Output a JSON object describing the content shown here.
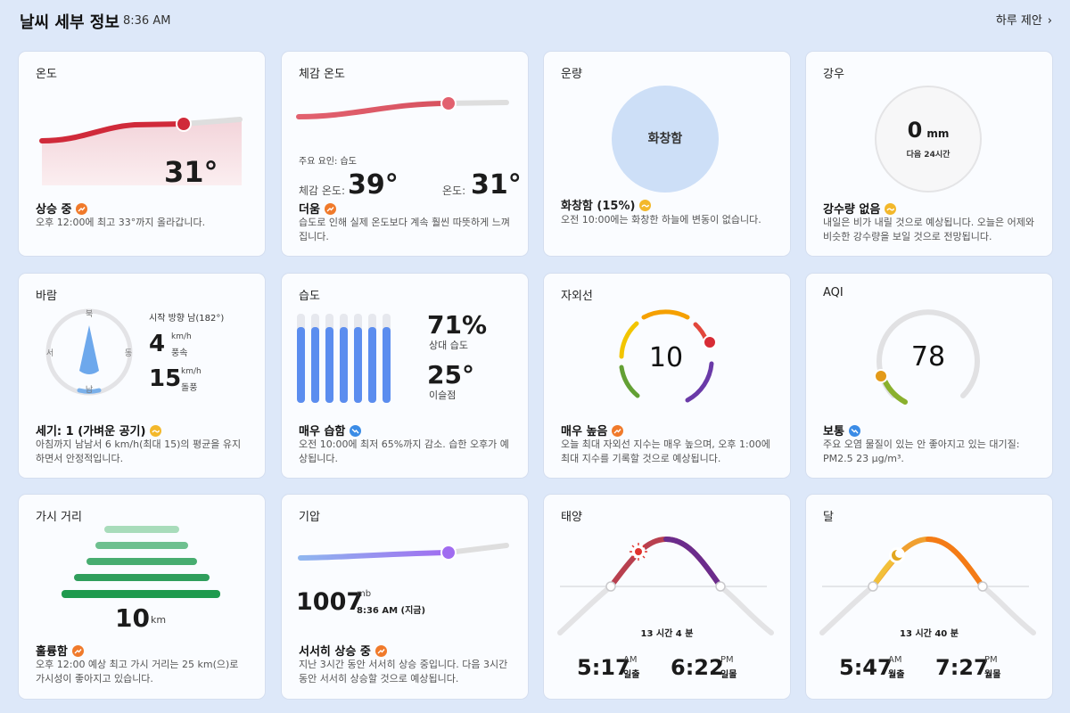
{
  "header": {
    "title": "날씨 세부 정보",
    "time": "8:36 AM",
    "suggest_label": "하루 제안"
  },
  "temperature": {
    "title": "온도",
    "value": "31°",
    "status": "상승 중",
    "status_trend": "up",
    "desc": "오후 12:00에 최고 33°까지 올라갑니다."
  },
  "feels_like": {
    "title": "체감 온도",
    "factor": "주요 요인: 습도",
    "feels_label": "체감 온도:",
    "feels_value": "39°",
    "temp_label": "온도:",
    "temp_value": "31°",
    "status": "더움",
    "status_trend": "up",
    "desc": "습도로 인해 실제 온도보다 계속 훨씬 따뜻하게 느껴집니다."
  },
  "cloud": {
    "title": "운량",
    "circle_label": "화창함",
    "status": "화창함 (15%)",
    "status_trend": "flat",
    "desc": "오전 10:00에는 화창한 하늘에 변동이 없습니다."
  },
  "precip": {
    "title": "강우",
    "value": "0",
    "unit": "mm",
    "sub": "다음 24시간",
    "status": "강수량 없음",
    "status_trend": "flat",
    "desc": "내일은 비가 내릴 것으로 예상됩니다. 오늘은 어제와 비슷한 강수량을 보일 것으로 전망됩니다."
  },
  "wind": {
    "title": "바람",
    "compass": {
      "n": "북",
      "s": "남",
      "e": "동",
      "w": "서"
    },
    "direction": "시작 방향 남(182°)",
    "speed_value": "4",
    "speed_unit": "km/h",
    "speed_label": "풍속",
    "gust_value": "15",
    "gust_unit": "km/h",
    "gust_label": "돌풍",
    "status": "세기: 1 (가벼운 공기)",
    "status_trend": "flat",
    "desc": "아침까지 남남서 6 km/h(최대 15)의 평균을 유지하면서 안정적입니다."
  },
  "humidity": {
    "title": "습도",
    "value": "71%",
    "value_label": "상대 습도",
    "dew_value": "25°",
    "dew_label": "이슬점",
    "bar_levels": [
      0.85,
      0.85,
      0.85,
      0.85,
      0.85,
      0.85,
      0.85
    ],
    "status": "매우 습함",
    "status_trend": "down",
    "desc": "오전 10:00에 최저 65%까지 감소. 습한 오후가 예상됩니다."
  },
  "uv": {
    "title": "자외선",
    "value": "10",
    "status": "매우 높음",
    "status_trend": "up",
    "desc": "오늘 최대 자외선 지수는 매우 높으며, 오후 1:00에 최대 지수를 기록할 것으로 예상됩니다."
  },
  "aqi": {
    "title": "AQI",
    "value": "78",
    "status": "보통",
    "status_trend": "down",
    "desc": "주요 오염 물질이 있는 안 좋아지고 있는 대기질: PM2.5 23 µg/m³."
  },
  "visibility": {
    "title": "가시 거리",
    "value": "10",
    "unit": "km",
    "status": "훌륭함",
    "status_trend": "up",
    "desc": "오후 12:00 예상 최고 가시 거리는 25 km(으)로 가시성이 좋아지고 있습니다."
  },
  "pressure": {
    "title": "기압",
    "value": "1007",
    "unit": "mb",
    "time": "8:36 AM (지금)",
    "status": "서서히 상승 중",
    "status_trend": "up",
    "desc": "지난 3시간 동안 서서히 상승 중입니다. 다음 3시간 동안 서서히 상승할 것으로 예상됩니다."
  },
  "sun": {
    "title": "태양",
    "duration": "13 시간 4 분",
    "rise_time": "5:17",
    "rise_ampm": "AM",
    "rise_label": "일출",
    "set_time": "6:22",
    "set_ampm": "PM",
    "set_label": "일몰"
  },
  "moon": {
    "title": "달",
    "duration": "13 시간 40 분",
    "rise_time": "5:47",
    "rise_ampm": "AM",
    "rise_label": "월출",
    "set_time": "7:27",
    "set_ampm": "PM",
    "set_label": "월몰"
  },
  "colors": {
    "background": "#dde8f9",
    "card": "#fafcff",
    "temp_red": "#d02a3a",
    "humidity_blue": "#5b8def",
    "pressure_purple": "#9a6cf0",
    "visibility_green": "#1f9a4e",
    "badge_up": "#f07a2b",
    "badge_flat": "#f3b82b",
    "badge_down": "#3b8ce6"
  }
}
